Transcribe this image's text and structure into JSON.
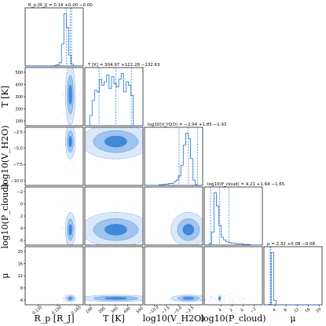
{
  "chart_data": {
    "type": "scatter",
    "subtype": "corner",
    "parameters": [
      {
        "key": "Rp",
        "label": "R_p [R_J]",
        "title": "R_p [R_J] = 0.16 +0.00 −0.00",
        "range": [
          0.12,
          0.18
        ],
        "ticks": [
          0.135,
          0.15,
          0.165
        ],
        "tick_labels": [
          "0.135",
          "0.150",
          "0.165"
        ],
        "median": 0.16,
        "q_low": 0.157,
        "q_high": 0.161,
        "lim": [
          0.125,
          0.17
        ]
      },
      {
        "key": "T",
        "label": "T [K]",
        "title": "T [K] = 304.97 +122.28 −132.63",
        "ticks": [
          100,
          200,
          300,
          400,
          500
        ],
        "tick_labels": [
          "100",
          "200",
          "300",
          "400",
          "500"
        ],
        "median": 304.97,
        "q_low": 172.34,
        "q_high": 427.25,
        "lim": [
          60,
          520
        ]
      },
      {
        "key": "H2O",
        "label": "log10(V_H2O)",
        "title": "log10(V_H2O) = −2.94 +1.85 −1.93",
        "ticks": [
          -10,
          -7.5,
          -5,
          -2.5
        ],
        "tick_labels": [
          "−10.0",
          "−7.5",
          "−5.0",
          "−2.5"
        ],
        "median": -2.94,
        "q_low": -4.87,
        "q_high": -1.09,
        "lim": [
          -12,
          0
        ]
      },
      {
        "key": "Pcloud",
        "label": "log10(P_cloud)",
        "title": "log10(P_cloud) = 4.21 +1.64 −1.65",
        "ticks": [
          4,
          2,
          0,
          -2
        ],
        "tick_labels": [
          "4",
          "2",
          "0",
          "−2"
        ],
        "median": 4.21,
        "q_low": 2.56,
        "q_high": 5.85,
        "lim": [
          7,
          -3.5
        ]
      },
      {
        "key": "mu",
        "label": "μ",
        "title": "μ = 2.32 +0.08 −0.08",
        "ticks": [
          4,
          8,
          12,
          16,
          20
        ],
        "tick_labels": [
          "4",
          "8",
          "12",
          "16",
          "20"
        ],
        "median": 2.32,
        "q_low": 2.24,
        "q_high": 2.4,
        "lim": [
          0,
          21
        ]
      }
    ],
    "row_tick_labels": {
      "T": [
        "500",
        "400",
        "300",
        "200",
        "100"
      ],
      "H2O": [
        "−2.5",
        "−5.0",
        "−7.5",
        "−10.0"
      ],
      "Pcloud": [
        "−2",
        "0",
        "2",
        "4",
        "6"
      ],
      "mu": [
        "20",
        "16",
        "12",
        "8",
        "4"
      ]
    },
    "x_labels": [
      "R_p [R_J]",
      "T [K]",
      "log10(V_H2O)",
      "log10(P_cloud)",
      "μ"
    ],
    "y_labels": [
      "T [K]",
      "log10(V_H2O)",
      "log10(P_cloud)",
      "μ"
    ],
    "colors": {
      "contour": "#1f6fd0",
      "fill_dark": "#2f7fd8",
      "fill_light": "#bcd6f5",
      "points": "#7fb0ea",
      "quantile_line": "#3b82d9"
    }
  }
}
